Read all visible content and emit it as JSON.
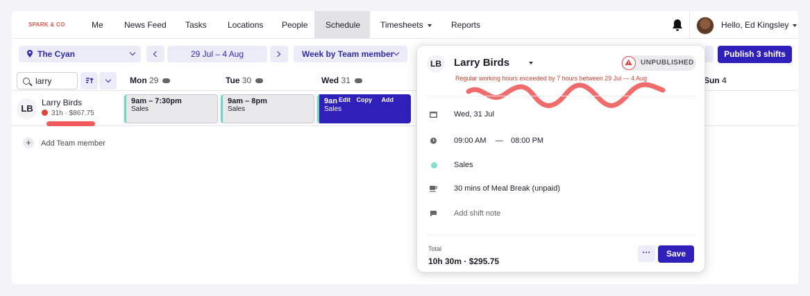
{
  "brand": "SPARK & CO",
  "nav": {
    "items": [
      "Me",
      "News Feed",
      "Tasks",
      "Locations",
      "People",
      "Schedule",
      "Timesheets",
      "Reports"
    ],
    "active": "Schedule",
    "user_greeting": "Hello, Ed Kingsley"
  },
  "toolbar": {
    "location": "The Cyan",
    "date_range": "29 Jul – 4 Aug",
    "view": "Week by Team member",
    "publish_label": "Publish 3 shifts"
  },
  "search": {
    "value": "larry"
  },
  "days": [
    {
      "name": "Mon",
      "num": "29"
    },
    {
      "name": "Tue",
      "num": "30"
    },
    {
      "name": "Wed",
      "num": "31"
    },
    {
      "name": "Sun",
      "num": "4"
    }
  ],
  "member": {
    "initials": "LB",
    "name": "Larry Birds",
    "meta": "31h · $867.75"
  },
  "shifts": [
    {
      "time": "9am – 7:30pm",
      "role": "Sales"
    },
    {
      "time": "9am – 8pm",
      "role": "Sales"
    },
    {
      "time": "9an",
      "role": "Sales",
      "actions": [
        "Edit",
        "Copy",
        "Add"
      ]
    }
  ],
  "add_team_member": "Add Team member",
  "popover": {
    "initials": "LB",
    "name": "Larry Birds",
    "status": "UNPUBLISHED",
    "warning": "Regular working hours exceeded by 7 hours between 29 Jul — 4 Aug",
    "date": "Wed, 31 Jul",
    "start": "09:00 AM",
    "dash": "—",
    "end": "08:00 PM",
    "role": "Sales",
    "break": "30 mins of Meal Break (unpaid)",
    "note_placeholder": "Add shift note",
    "total_label": "Total",
    "total_value": "10h 30m · $295.75",
    "more_label": "···",
    "save_label": "Save"
  },
  "colors": {
    "primary": "#2e20b8",
    "warning": "#c8412f",
    "teal": "#6fd6c4"
  }
}
